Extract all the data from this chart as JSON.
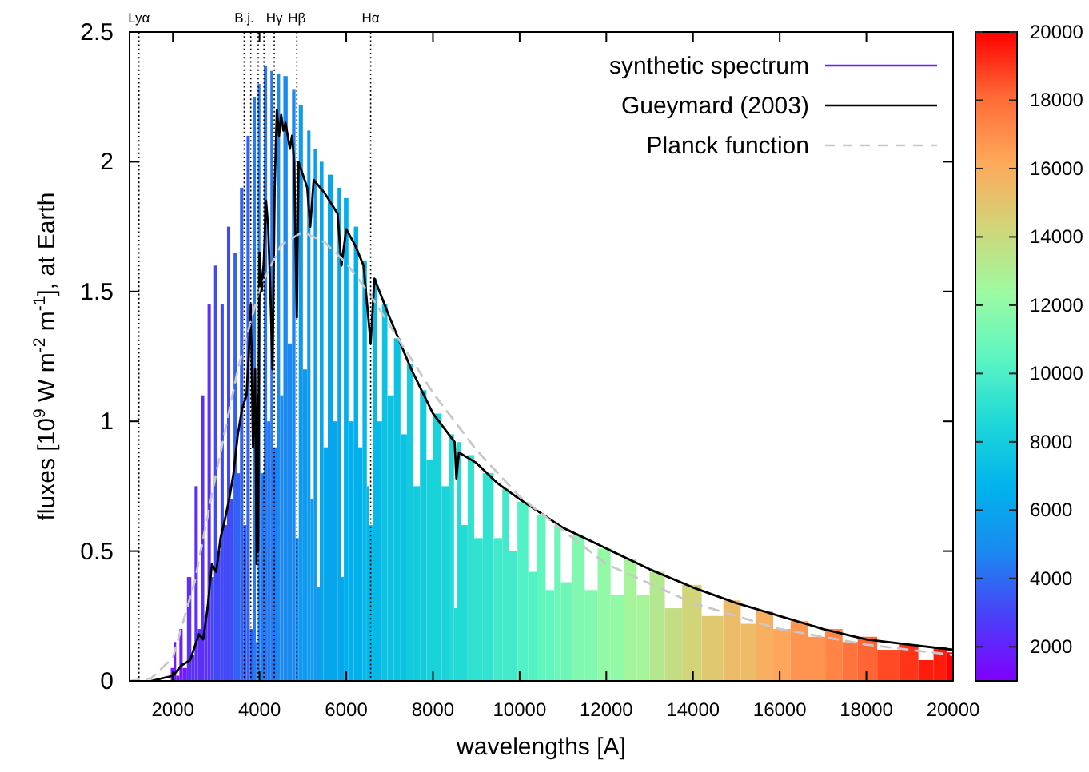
{
  "chart_data": {
    "type": "line",
    "xlabel": "wavelengths [A]",
    "ylabel": "fluxes [10$^{9}$ W m$^{-2}$ m$^{-1}$], at Earth",
    "xlim": [
      1000,
      20000
    ],
    "xticks": [
      2000,
      4000,
      6000,
      8000,
      10000,
      12000,
      14000,
      16000,
      18000,
      20000
    ],
    "ylim": [
      0,
      2.5
    ],
    "yticks": [
      0,
      0.5,
      1,
      1.5,
      2,
      2.5
    ],
    "clim": [
      1000,
      20000
    ],
    "cticks": [
      2000,
      4000,
      6000,
      8000,
      10000,
      12000,
      14000,
      16000,
      18000,
      20000
    ],
    "grid": false,
    "legend": "top right",
    "ref_lines": [
      {
        "axis": "x",
        "value": 1216,
        "label": "Lyα"
      },
      {
        "axis": "x",
        "value": 3646,
        "label": "B.j."
      },
      {
        "axis": "x",
        "value": 3798,
        "label": null
      },
      {
        "axis": "x",
        "value": 3970,
        "label": null
      },
      {
        "axis": "x",
        "value": 4102,
        "label": null
      },
      {
        "axis": "x",
        "value": 4340,
        "label": "Hγ"
      },
      {
        "axis": "x",
        "value": 4861,
        "label": "Hβ"
      },
      {
        "axis": "x",
        "value": 6563,
        "label": "Hα"
      }
    ],
    "series": [
      {
        "name": "synthetic spectrum",
        "type": "bar",
        "colors": [
          "#7418fd",
          "#7418fd",
          "#7418fd",
          "#7418fd",
          "#7418fd",
          "#7418fd",
          "#5c30fa",
          "#5c30fa",
          "#5c30fa",
          "#5c30fa",
          "#5c30fa",
          "#5c30fa",
          "#5c30fa",
          "#4248f7",
          "#4248f7",
          "#4248f7",
          "#4248f7",
          "#4248f7",
          "#4248f7",
          "#4248f7",
          "#3262f5",
          "#3262f5",
          "#3262f5",
          "#3262f5",
          "#3262f5",
          "#3262f5",
          "#267af2",
          "#267af2",
          "#267af2",
          "#267af2",
          "#267af2",
          "#267af2",
          "#267af2",
          "#267af2",
          "#1a8af0",
          "#1a8af0",
          "#1a8af0",
          "#1a8af0",
          "#1a8af0",
          "#1a8af0",
          "#0e9aee",
          "#0e9aee",
          "#0e9aee",
          "#0e9aee",
          "#0e9aee",
          "#0e9aee",
          "#06a6ed",
          "#06a6ed",
          "#06a6ed",
          "#06a6ed",
          "#06a6ed",
          "#06a6ed",
          "#00b0ec",
          "#00b0ec",
          "#00b0ec",
          "#00b0ec",
          "#04b8e8",
          "#04b8e8",
          "#04b8e8",
          "#04b8e8",
          "#04b8e8",
          "#0cc2e2",
          "#0cc2e2",
          "#0cc2e2",
          "#0cc2e2",
          "#14cadd",
          "#14cadd",
          "#14cadd",
          "#1ad2da",
          "#1ad2da",
          "#1ad2da",
          "#22dad6",
          "#22dad6",
          "#22dad6",
          "#22dad6",
          "#32e2d0",
          "#32e2d0",
          "#32e2d0",
          "#42eacb",
          "#42eacb",
          "#42eacb",
          "#52f2c6",
          "#52f2c6",
          "#60f6c0",
          "#60f6c0",
          "#6ef6b8",
          "#6ef6b8",
          "#80f8b0",
          "#80f8b0",
          "#92faa6",
          "#92faa6",
          "#a6f49a",
          "#a6f49a",
          "#b4e890",
          "#c4dc84",
          "#d2d478",
          "#e0c870",
          "#ecbc68",
          "#ecbc68",
          "#f8b060",
          "#ffa65a",
          "#ff9450",
          "#ff9450",
          "#ff8446",
          "#ff743c",
          "#ff6434",
          "#ff4a24",
          "#ff3418",
          "#ff1c0c",
          "#ff1c0c",
          "#ff0000"
        ],
        "x": [
          1900,
          2000,
          2050,
          2100,
          2200,
          2250,
          2400,
          2450,
          2550,
          2600,
          2700,
          2750,
          2850,
          2900,
          3000,
          3050,
          3150,
          3200,
          3300,
          3350,
          3450,
          3500,
          3600,
          3650,
          3750,
          3800,
          3900,
          3933,
          3990,
          4050,
          4150,
          4200,
          4300,
          4340,
          4450,
          4500,
          4600,
          4700,
          4800,
          4861,
          4950,
          5050,
          5150,
          5200,
          5300,
          5330,
          5450,
          5500,
          5650,
          5750,
          5850,
          5890,
          6000,
          6100,
          6250,
          6300,
          6450,
          6500,
          6563,
          6650,
          6750,
          6900,
          7000,
          7200,
          7300,
          7500,
          7600,
          7800,
          7900,
          8100,
          8300,
          8450,
          8520,
          8600,
          8700,
          8900,
          9000,
          9300,
          9500,
          9700,
          9800,
          10100,
          10300,
          10500,
          10700,
          10900,
          11000,
          11400,
          11600,
          12000,
          12200,
          12600,
          12800,
          13200,
          13500,
          14000,
          14400,
          15000,
          15200,
          15700,
          16000,
          16500,
          16800,
          17300,
          17600,
          18000,
          18500,
          19000,
          19400,
          19700,
          20000
        ],
        "values": [
          0,
          0.05,
          0.15,
          0.02,
          0.2,
          0.05,
          0.4,
          0.1,
          0.75,
          0.2,
          1.1,
          0.25,
          1.45,
          0.4,
          1.6,
          0.5,
          1.45,
          0.6,
          1.75,
          0.7,
          1.65,
          0.8,
          1.9,
          0.6,
          2.1,
          0.2,
          2.25,
          0.15,
          2.3,
          0.8,
          2.37,
          1,
          2.35,
          0.9,
          2.34,
          1.1,
          2.33,
          1.3,
          2.28,
          0.55,
          2.22,
          1.2,
          2.12,
          0.7,
          2.05,
          0.36,
          2,
          0.9,
          1.95,
          1,
          1.9,
          0.4,
          1.86,
          1,
          1.75,
          0.9,
          1.62,
          0.75,
          0.6,
          1.55,
          1,
          1.45,
          1.1,
          1.32,
          0.95,
          1.22,
          0.75,
          1.12,
          0.85,
          1.03,
          0.75,
          0.95,
          0.28,
          0.92,
          0.6,
          0.87,
          0.55,
          0.8,
          0.55,
          0.74,
          0.5,
          0.69,
          0.42,
          0.64,
          0.35,
          0.6,
          0.38,
          0.56,
          0.35,
          0.51,
          0.33,
          0.47,
          0.33,
          0.42,
          0.28,
          0.37,
          0.25,
          0.31,
          0.22,
          0.27,
          0.2,
          0.23,
          0.17,
          0.2,
          0.15,
          0.17,
          0.12,
          0.14,
          0.08,
          0.13,
          0.11
        ]
      },
      {
        "name": "Gueymard (2003)",
        "color": "#000000",
        "line_style": "solid",
        "x": [
          1500,
          2000,
          2200,
          2400,
          2600,
          2700,
          2800,
          2900,
          3000,
          3100,
          3200,
          3300,
          3400,
          3500,
          3600,
          3700,
          3750,
          3800,
          3850,
          3900,
          3933,
          3960,
          3968,
          4000,
          4050,
          4100,
          4150,
          4200,
          4250,
          4300,
          4350,
          4400,
          4450,
          4500,
          4550,
          4600,
          4700,
          4750,
          4800,
          4861,
          4900,
          5000,
          5100,
          5170,
          5250,
          5500,
          5800,
          5890,
          6000,
          6200,
          6400,
          6563,
          6650,
          7000,
          7500,
          8000,
          8500,
          8540,
          8600,
          9000,
          9500,
          10000,
          11000,
          12000,
          13000,
          14000,
          15000,
          16000,
          17000,
          18000,
          19000,
          20000
        ],
        "values": [
          0,
          0.02,
          0.06,
          0.08,
          0.18,
          0.16,
          0.28,
          0.45,
          0.42,
          0.55,
          0.62,
          0.7,
          0.8,
          0.95,
          1.05,
          1.1,
          1.25,
          1.45,
          0.9,
          1.2,
          0.45,
          1.1,
          0.5,
          1.65,
          1.5,
          1.62,
          1.85,
          1.75,
          1.5,
          1.2,
          1.9,
          2.2,
          2.1,
          2.18,
          2.12,
          2.15,
          2.05,
          2.1,
          2,
          1.4,
          2,
          1.95,
          1.9,
          1.75,
          1.93,
          1.88,
          1.8,
          1.6,
          1.74,
          1.68,
          1.6,
          1.3,
          1.55,
          1.4,
          1.2,
          1.03,
          0.92,
          0.78,
          0.88,
          0.84,
          0.76,
          0.7,
          0.59,
          0.51,
          0.43,
          0.36,
          0.3,
          0.25,
          0.2,
          0.16,
          0.14,
          0.12
        ]
      },
      {
        "name": "Planck function",
        "color": "#c8c8c8",
        "line_style": "dashed",
        "x": [
          1000,
          1500,
          2000,
          2500,
          3000,
          3500,
          4000,
          4500,
          5000,
          5500,
          6000,
          6500,
          7000,
          8000,
          9000,
          10000,
          12000,
          14000,
          16000,
          18000,
          20000
        ],
        "values": [
          0,
          0.01,
          0.09,
          0.38,
          0.8,
          1.2,
          1.51,
          1.68,
          1.73,
          1.69,
          1.61,
          1.5,
          1.37,
          1.11,
          0.89,
          0.71,
          0.45,
          0.3,
          0.2,
          0.14,
          0.1
        ]
      }
    ]
  }
}
